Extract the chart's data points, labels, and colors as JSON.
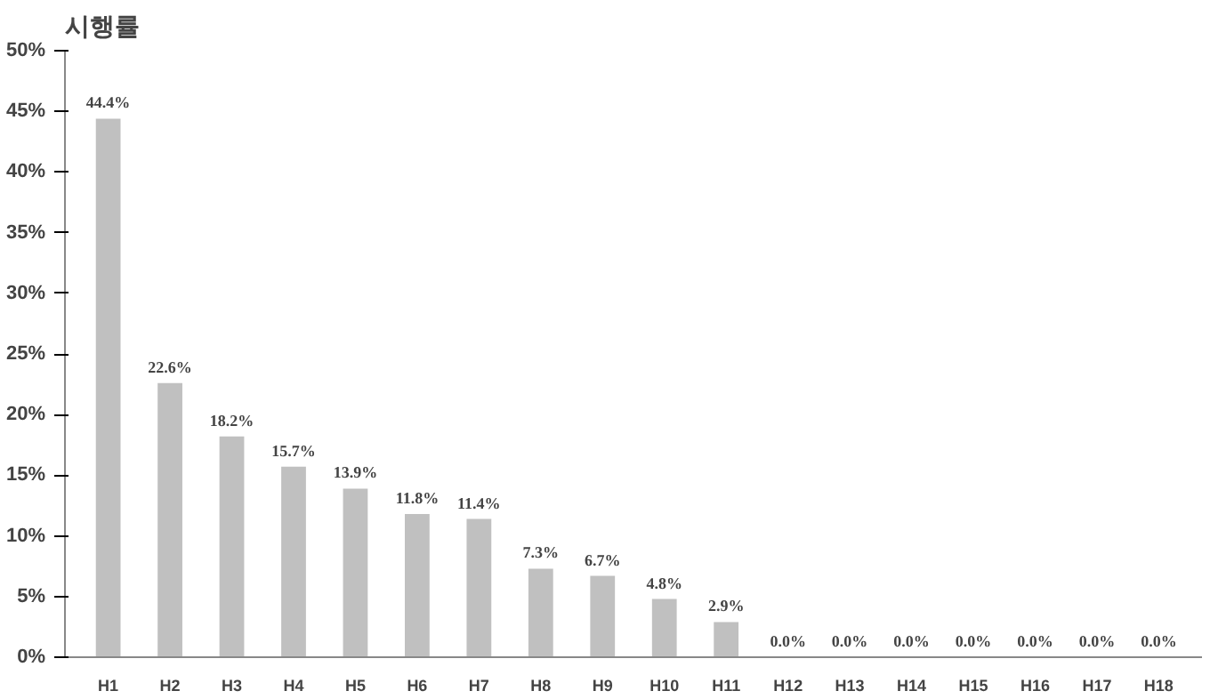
{
  "chart_data": {
    "type": "bar",
    "title": "시행률",
    "categories": [
      "H1",
      "H2",
      "H3",
      "H4",
      "H5",
      "H6",
      "H7",
      "H8",
      "H9",
      "H10",
      "H11",
      "H12",
      "H13",
      "H14",
      "H15",
      "H16",
      "H17",
      "H18"
    ],
    "values": [
      44.4,
      22.6,
      18.2,
      15.7,
      13.9,
      11.8,
      11.4,
      7.3,
      6.7,
      4.8,
      2.9,
      0.0,
      0.0,
      0.0,
      0.0,
      0.0,
      0.0,
      0.0
    ],
    "value_labels": [
      "44.4%",
      "22.6%",
      "18.2%",
      "15.7%",
      "13.9%",
      "11.8%",
      "11.4%",
      "7.3%",
      "6.7%",
      "4.8%",
      "2.9%",
      "0.0%",
      "0.0%",
      "0.0%",
      "0.0%",
      "0.0%",
      "0.0%",
      "0.0%"
    ],
    "color": "#c0c0c0",
    "ylim": [
      0,
      50
    ],
    "yticks": [
      {
        "value": 0,
        "label": "0%"
      },
      {
        "value": 5,
        "label": "5%"
      },
      {
        "value": 10,
        "label": "10%"
      },
      {
        "value": 15,
        "label": "15%"
      },
      {
        "value": 20,
        "label": "20%"
      },
      {
        "value": 25,
        "label": "25%"
      },
      {
        "value": 30,
        "label": "30%"
      },
      {
        "value": 35,
        "label": "35%"
      },
      {
        "value": 40,
        "label": "40%"
      },
      {
        "value": 45,
        "label": "45%"
      },
      {
        "value": 50,
        "label": "50%"
      }
    ],
    "grid": false
  }
}
